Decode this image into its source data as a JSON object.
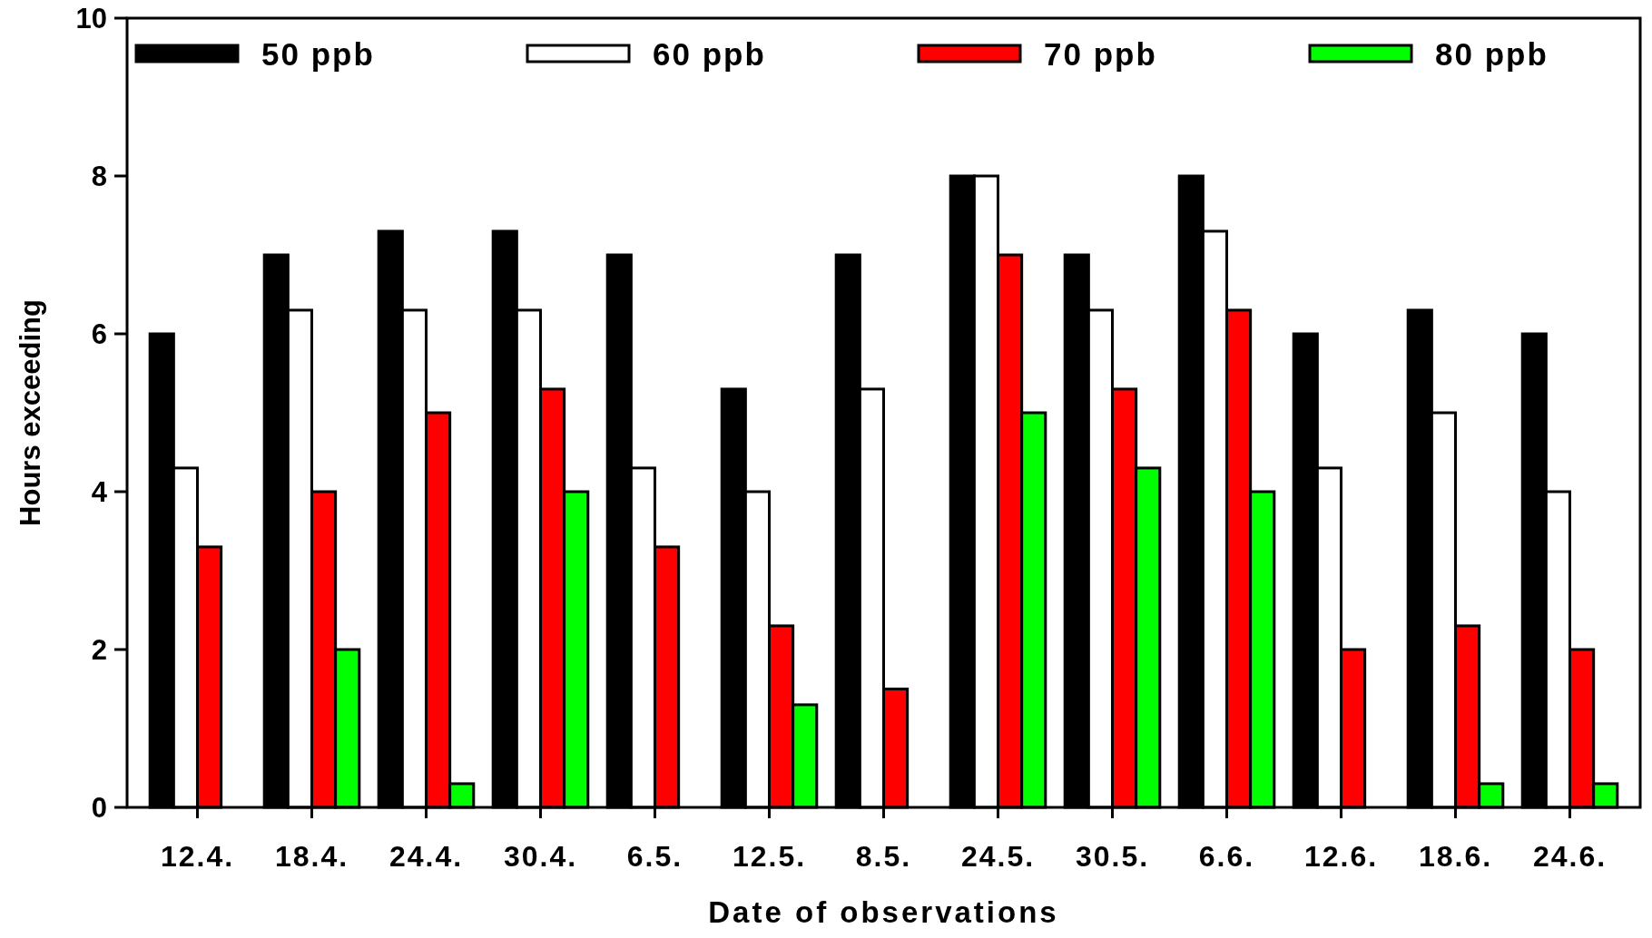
{
  "chart_data": {
    "type": "bar",
    "xlabel": "Date of observations",
    "ylabel": "Hours exceeding",
    "categories": [
      "12.4.",
      "18.4.",
      "24.4.",
      "30.4.",
      "6.5.",
      "12.5.",
      "8.5.",
      "24.5.",
      "30.5.",
      "6.6.",
      "12.6.",
      "18.6.",
      "24.6."
    ],
    "series": [
      {
        "name": "50 ppb",
        "color": "#000000",
        "values": [
          6,
          7,
          7.3,
          7.3,
          7,
          5.3,
          7,
          8,
          7,
          8,
          6,
          6.3,
          6
        ]
      },
      {
        "name": "60 ppb",
        "color": "#ffffff",
        "values": [
          4.3,
          6.3,
          6.3,
          6.3,
          4.3,
          4,
          5.3,
          8,
          6.3,
          7.3,
          4.3,
          5,
          4
        ]
      },
      {
        "name": "70 ppb",
        "color": "#ff0000",
        "values": [
          3.3,
          4,
          5,
          5.3,
          3.3,
          2.3,
          1.5,
          7,
          5.3,
          6.3,
          2,
          2.3,
          2
        ]
      },
      {
        "name": "80 ppb",
        "color": "#00ff00",
        "values": [
          0,
          2,
          0.3,
          4,
          0,
          1.3,
          0,
          5,
          4.3,
          4,
          0,
          0.3,
          0.3
        ]
      }
    ],
    "ylim": [
      0,
      10
    ],
    "yticks": [
      0,
      2,
      4,
      6,
      8,
      10
    ],
    "grid": false,
    "legend": "top"
  }
}
